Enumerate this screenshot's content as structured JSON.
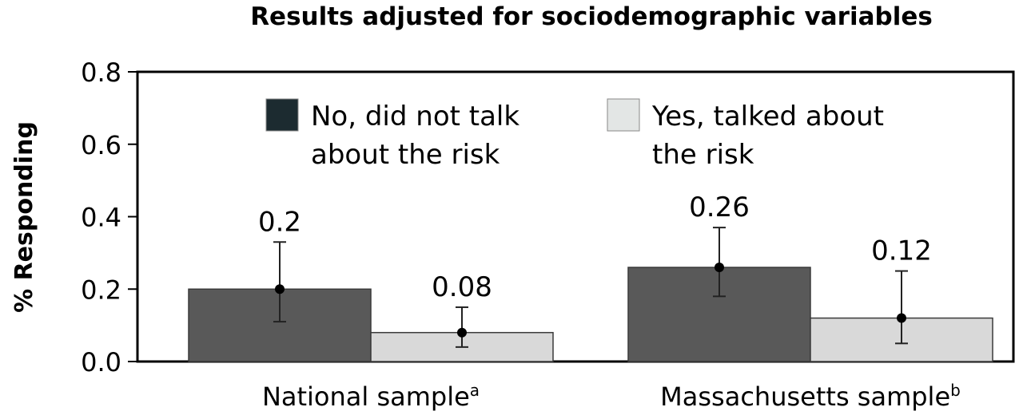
{
  "chart_data": {
    "type": "bar",
    "title": "Results adjusted for sociodemographic variables",
    "ylabel": "% Responding",
    "xlabel": "",
    "ylim": [
      0,
      0.8
    ],
    "yticks": [
      "0.0",
      "0.2",
      "0.4",
      "0.6",
      "0.8"
    ],
    "categories": [
      {
        "label": "National sample",
        "sup": "a"
      },
      {
        "label": "Massachusetts sample",
        "sup": "b"
      }
    ],
    "series": [
      {
        "name": "No, did not talk about the risk",
        "legend_lines": [
          "No, did not talk",
          "about the risk"
        ],
        "color": "#595959",
        "swatch_color": "#1c2b30",
        "values": [
          0.2,
          0.26
        ],
        "labels": [
          "0.2",
          "0.26"
        ],
        "error_low": [
          0.11,
          0.18
        ],
        "error_high": [
          0.33,
          0.37
        ]
      },
      {
        "name": "Yes, talked about the risk",
        "legend_lines": [
          "Yes, talked about",
          "the risk"
        ],
        "color": "#d9d9d9",
        "swatch_color": "#e3e6e5",
        "values": [
          0.08,
          0.12
        ],
        "labels": [
          "0.08",
          "0.12"
        ],
        "error_low": [
          0.04,
          0.05
        ],
        "error_high": [
          0.15,
          0.25
        ]
      }
    ],
    "grid": false,
    "legend_position": "top"
  }
}
